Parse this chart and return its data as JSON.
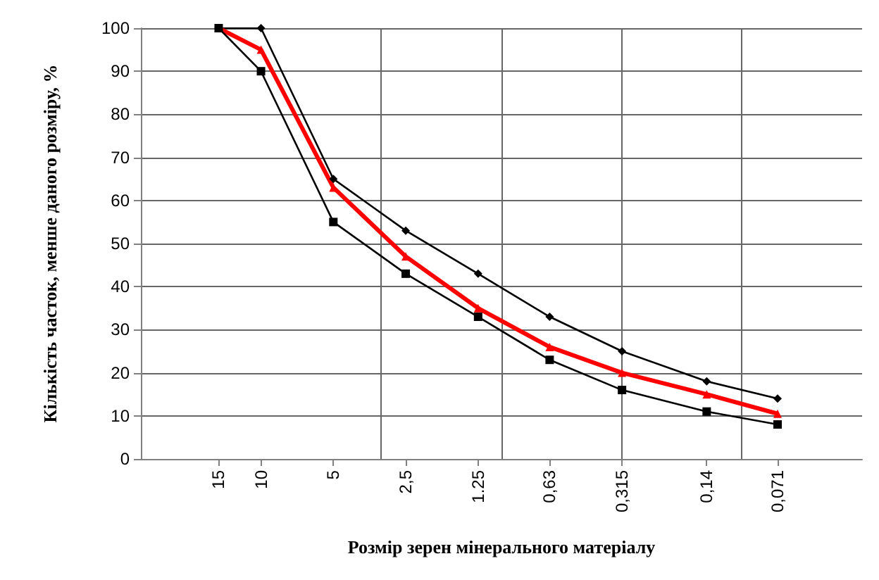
{
  "chart_data": {
    "type": "line",
    "xlabel": "Розмір зерен мінерального матеріалу",
    "ylabel": "Кількість часток, менше даного розміру, %",
    "x": [
      15,
      10,
      5,
      2.5,
      1.25,
      0.63,
      0.315,
      0.14,
      0.071
    ],
    "log": "x",
    "xlim": [
      31.6,
      0.0316
    ],
    "xticks": [
      {
        "value": 15,
        "label": "15"
      },
      {
        "value": 10,
        "label": "10"
      },
      {
        "value": 5,
        "label": "5"
      },
      {
        "value": 3.16,
        "label": null
      },
      {
        "value": 2.5,
        "label": "2,5"
      },
      {
        "value": 1.25,
        "label": "1.25"
      },
      {
        "value": 1,
        "label": null
      },
      {
        "value": 0.63,
        "label": "0,63"
      },
      {
        "value": 0.316,
        "label": null
      },
      {
        "value": 0.315,
        "label": "0,315"
      },
      {
        "value": 0.14,
        "label": "0,14"
      },
      {
        "value": 0.1,
        "label": null
      },
      {
        "value": 0.071,
        "label": "0,071"
      }
    ],
    "ylim": [
      0,
      100
    ],
    "yticks": [
      0,
      10,
      20,
      30,
      40,
      50,
      60,
      70,
      80,
      90,
      100
    ],
    "grid": true,
    "series": [
      {
        "color": "#000000",
        "marker": "diamond",
        "values": [
          100,
          100,
          65,
          53,
          43,
          33,
          25,
          18,
          14
        ]
      },
      {
        "color": "#ff0000",
        "marker": "triangle",
        "values": [
          100,
          95,
          63,
          47,
          35,
          26,
          20,
          15,
          10.5
        ]
      },
      {
        "color": "#000000",
        "marker": "square",
        "values": [
          100,
          90,
          55,
          43,
          33,
          23,
          16,
          11,
          8
        ]
      }
    ]
  }
}
